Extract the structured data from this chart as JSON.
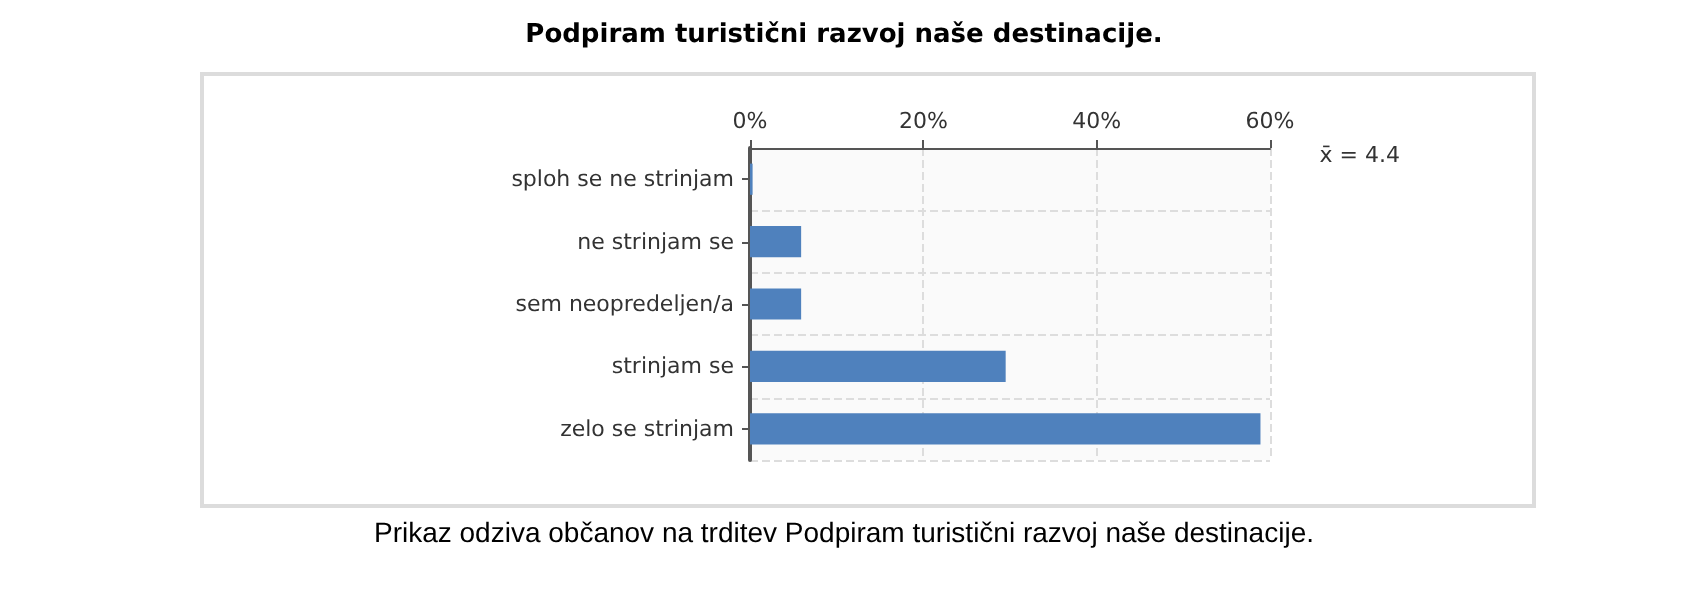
{
  "chart_data": {
    "type": "bar",
    "orientation": "horizontal",
    "title": "Podpiram turistični razvoj naše destinacije.",
    "categories": [
      "sploh se ne strinjam",
      "ne strinjam se",
      "sem neopredeljen/a",
      "strinjam se",
      "zelo se strinjam"
    ],
    "values": [
      0.3,
      5.9,
      5.9,
      29.5,
      58.9
    ],
    "color": "#4f81bd",
    "xlim": [
      0,
      60
    ],
    "xticks": [
      {
        "value": 0,
        "label": "0%"
      },
      {
        "value": 20,
        "label": "20%"
      },
      {
        "value": 40,
        "label": "40%"
      },
      {
        "value": 60,
        "label": "60%"
      }
    ],
    "grid": true,
    "annotations": [
      "x̄ = 4.4",
      "Prikaz odziva občanov na trditev Podpiram turistični razvoj naše destinacije."
    ]
  }
}
